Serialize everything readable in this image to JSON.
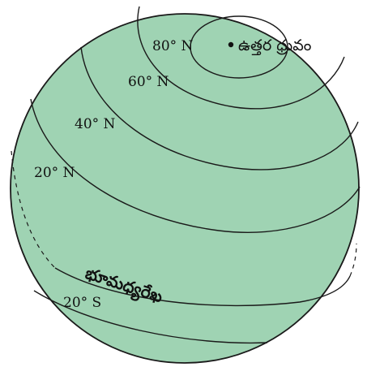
{
  "globe": {
    "fill_color": "#9fd3b3",
    "line_color": "#1a1a1a"
  },
  "latitudes": {
    "lat_80n": "80° N",
    "lat_60n": "60° N",
    "lat_40n": "40° N",
    "lat_20n": "20° N",
    "lat_20s": "20° S"
  },
  "labels": {
    "north_pole": "ఉత్తర ధ్రువం",
    "equator": "భూమధ్యరేఖ"
  }
}
